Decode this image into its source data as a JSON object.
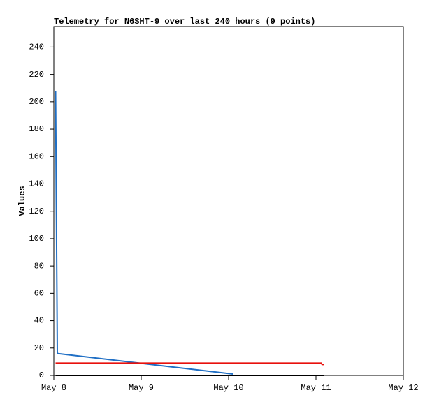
{
  "chart_data": {
    "type": "line",
    "title": "Telemetry for N6SHT-9 over last 240 hours (9 points)",
    "y_label": "Values",
    "xlim": [
      8,
      12
    ],
    "xticks": [
      {
        "value": 8,
        "label": "May 8"
      },
      {
        "value": 9,
        "label": "May 9"
      },
      {
        "value": 10,
        "label": "May 10"
      },
      {
        "value": 11,
        "label": "May 11"
      },
      {
        "value": 12,
        "label": "May 12"
      }
    ],
    "ylim": [
      0,
      255
    ],
    "yticks": [
      0,
      20,
      40,
      60,
      80,
      100,
      120,
      140,
      160,
      180,
      200,
      220,
      240
    ],
    "grid": false,
    "series": [
      {
        "color": "#1f6fc5",
        "x": [
          8.02,
          8.03,
          8.04,
          10.05
        ],
        "values": [
          208,
          113,
          16,
          1
        ]
      },
      {
        "color": "#e8100c",
        "x": [
          8.02,
          11.06,
          11.07,
          11.09
        ],
        "values": [
          9,
          9,
          8,
          8
        ]
      },
      {
        "color": "#000000",
        "x": [
          8.02,
          11.09
        ],
        "values": [
          0,
          0
        ]
      }
    ]
  }
}
